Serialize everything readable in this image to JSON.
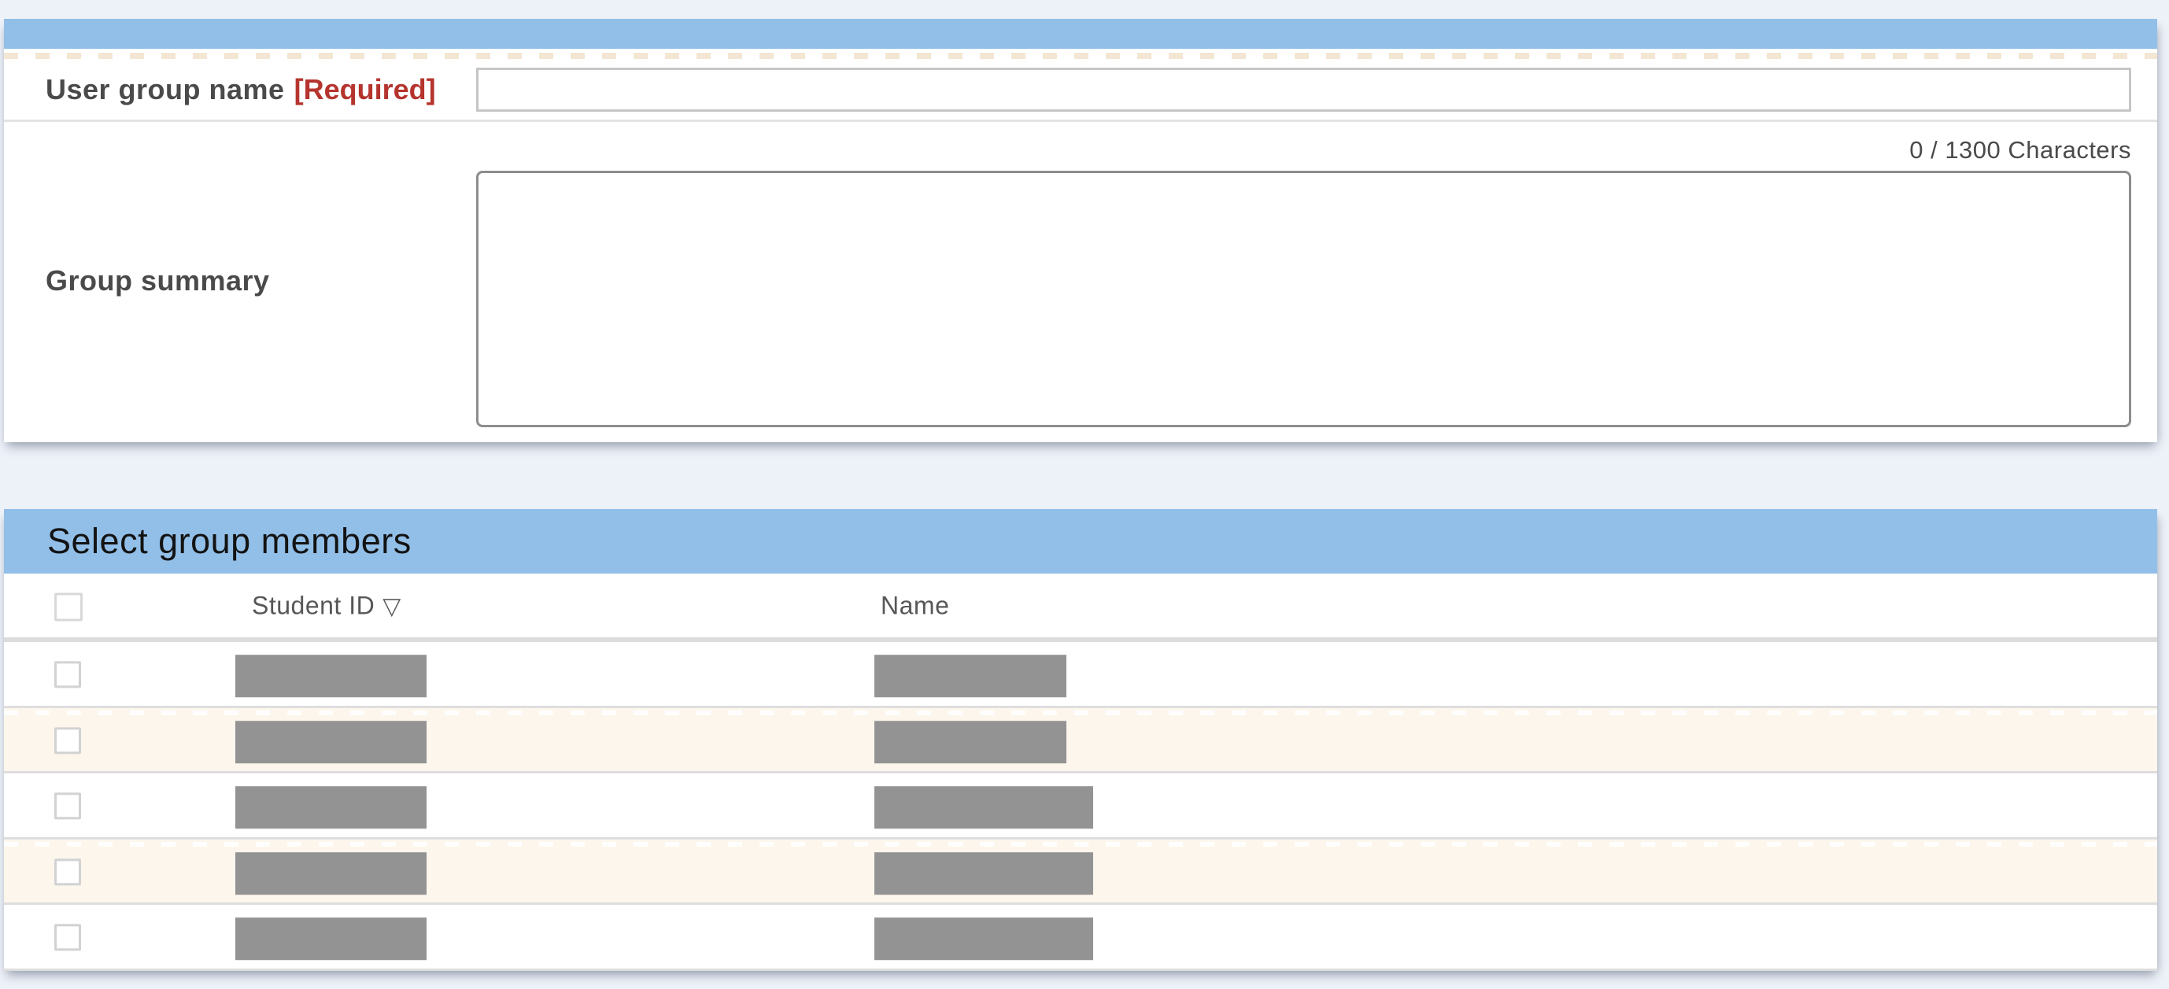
{
  "group_form": {
    "section_title": "",
    "name_field": {
      "label": "User group name",
      "required_badge": "[Required]",
      "value": "",
      "placeholder": ""
    },
    "summary_field": {
      "label": "Group summary",
      "counter": "0 / 1300 Characters",
      "value": "",
      "max_characters": "1300",
      "current_characters": "0"
    }
  },
  "member_section": {
    "title": "Select group members",
    "header": {
      "student_id": "Student ID",
      "sort_icon": "▽",
      "name": "Name"
    },
    "rows": [
      {
        "checked": false,
        "student_id_redacted": true,
        "name_redacted": true,
        "stripe": "white",
        "student_id_block_width": 243,
        "name_block_width": 244
      },
      {
        "checked": false,
        "student_id_redacted": true,
        "name_redacted": true,
        "stripe": "cream",
        "student_id_block_width": 243,
        "name_block_width": 244
      },
      {
        "checked": false,
        "student_id_redacted": true,
        "name_redacted": true,
        "stripe": "white",
        "student_id_block_width": 243,
        "name_block_width": 278
      },
      {
        "checked": false,
        "student_id_redacted": true,
        "name_redacted": true,
        "stripe": "cream",
        "student_id_block_width": 243,
        "name_block_width": 278
      },
      {
        "checked": false,
        "student_id_redacted": true,
        "name_redacted": true,
        "stripe": "white",
        "student_id_block_width": 243,
        "name_block_width": 278
      }
    ]
  },
  "colors": {
    "page_bg": "#edf1f8",
    "section_header_bg": "#92bfe8",
    "required_red": "#b5342e",
    "zebra_cream": "#fdf6ec",
    "redaction_gray": "#939393"
  }
}
